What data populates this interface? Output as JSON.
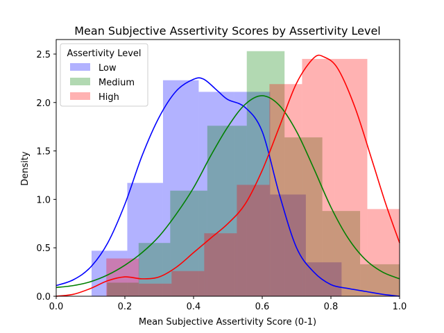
{
  "chart_data": {
    "type": "histogram-kde",
    "title": "Mean Subjective Assertivity Scores by Assertivity Level",
    "xlabel": "Mean Subjective Assertivity Score (0-1)",
    "ylabel": "Density",
    "xlim": [
      0,
      1
    ],
    "ylim": [
      0,
      2.65
    ],
    "xticks": [
      "0.0",
      "0.2",
      "0.4",
      "0.6",
      "0.8",
      "1.0"
    ],
    "yticks": [
      "0.0",
      "0.5",
      "1.0",
      "1.5",
      "2.0",
      "2.5"
    ],
    "grid": false,
    "legend": {
      "title": "Assertivity Level",
      "placement": "top-left"
    },
    "series": [
      {
        "name": "Low",
        "color": "#0000ff",
        "bins": [
          {
            "x0": 0.103,
            "x1": 0.207,
            "y": 0.47
          },
          {
            "x0": 0.207,
            "x1": 0.311,
            "y": 1.17
          },
          {
            "x0": 0.311,
            "x1": 0.415,
            "y": 2.23
          },
          {
            "x0": 0.415,
            "x1": 0.519,
            "y": 2.11
          },
          {
            "x0": 0.519,
            "x1": 0.623,
            "y": 2.11
          },
          {
            "x0": 0.623,
            "x1": 0.727,
            "y": 1.05
          },
          {
            "x0": 0.727,
            "x1": 0.831,
            "y": 0.35
          }
        ],
        "kde": [
          [
            0.0,
            0.11
          ],
          [
            0.05,
            0.17
          ],
          [
            0.1,
            0.3
          ],
          [
            0.15,
            0.55
          ],
          [
            0.2,
            0.95
          ],
          [
            0.25,
            1.45
          ],
          [
            0.3,
            1.85
          ],
          [
            0.35,
            2.12
          ],
          [
            0.4,
            2.24
          ],
          [
            0.43,
            2.24
          ],
          [
            0.47,
            2.12
          ],
          [
            0.5,
            2.03
          ],
          [
            0.55,
            1.95
          ],
          [
            0.6,
            1.7
          ],
          [
            0.65,
            1.05
          ],
          [
            0.7,
            0.5
          ],
          [
            0.75,
            0.25
          ],
          [
            0.8,
            0.12
          ],
          [
            0.85,
            0.08
          ],
          [
            0.9,
            0.05
          ],
          [
            0.95,
            0.02
          ],
          [
            1.0,
            0.0
          ]
        ]
      },
      {
        "name": "Medium",
        "color": "#008000",
        "bins": [
          {
            "x0": 0.1,
            "x1": 0.165,
            "y": 0.0
          },
          {
            "x0": 0.165,
            "x1": 0.23,
            "y": 0.0
          },
          {
            "x0": 0.24,
            "x1": 0.33,
            "y": 0.0
          }
        ],
        "bars": [
          {
            "x0": 0.148,
            "x1": 0.24,
            "y": 0.14
          },
          {
            "x0": 0.24,
            "x1": 0.332,
            "y": 0.55
          },
          {
            "x0": 0.332,
            "x1": 0.44,
            "y": 1.09
          },
          {
            "x0": 0.44,
            "x1": 0.555,
            "y": 1.76
          },
          {
            "x0": 0.555,
            "x1": 0.665,
            "y": 2.53
          },
          {
            "x0": 0.665,
            "x1": 0.775,
            "y": 1.64
          },
          {
            "x0": 0.775,
            "x1": 0.885,
            "y": 0.88
          },
          {
            "x0": 0.885,
            "x1": 1.0,
            "y": 0.33
          }
        ],
        "kde": [
          [
            0.0,
            0.09
          ],
          [
            0.05,
            0.11
          ],
          [
            0.1,
            0.15
          ],
          [
            0.15,
            0.22
          ],
          [
            0.2,
            0.32
          ],
          [
            0.25,
            0.45
          ],
          [
            0.3,
            0.62
          ],
          [
            0.35,
            0.85
          ],
          [
            0.4,
            1.12
          ],
          [
            0.45,
            1.45
          ],
          [
            0.5,
            1.75
          ],
          [
            0.55,
            1.98
          ],
          [
            0.6,
            2.07
          ],
          [
            0.65,
            1.97
          ],
          [
            0.7,
            1.7
          ],
          [
            0.75,
            1.32
          ],
          [
            0.8,
            0.92
          ],
          [
            0.85,
            0.6
          ],
          [
            0.9,
            0.38
          ],
          [
            0.95,
            0.25
          ],
          [
            1.0,
            0.18
          ]
        ]
      },
      {
        "name": "High",
        "color": "#ff0000",
        "bars": [
          {
            "x0": 0.146,
            "x1": 0.241,
            "y": 0.39
          },
          {
            "x0": 0.241,
            "x1": 0.336,
            "y": 0.13
          },
          {
            "x0": 0.336,
            "x1": 0.431,
            "y": 0.26
          },
          {
            "x0": 0.431,
            "x1": 0.526,
            "y": 0.65
          },
          {
            "x0": 0.526,
            "x1": 0.621,
            "y": 1.15
          },
          {
            "x0": 0.621,
            "x1": 0.716,
            "y": 2.19
          },
          {
            "x0": 0.716,
            "x1": 0.811,
            "y": 2.45
          },
          {
            "x0": 0.811,
            "x1": 0.906,
            "y": 2.45
          },
          {
            "x0": 0.906,
            "x1": 1.0,
            "y": 0.9
          }
        ],
        "kde": [
          [
            0.0,
            0.0
          ],
          [
            0.05,
            0.02
          ],
          [
            0.1,
            0.08
          ],
          [
            0.15,
            0.16
          ],
          [
            0.2,
            0.2
          ],
          [
            0.25,
            0.18
          ],
          [
            0.3,
            0.2
          ],
          [
            0.35,
            0.3
          ],
          [
            0.4,
            0.45
          ],
          [
            0.45,
            0.6
          ],
          [
            0.5,
            0.75
          ],
          [
            0.55,
            0.95
          ],
          [
            0.6,
            1.3
          ],
          [
            0.65,
            1.75
          ],
          [
            0.7,
            2.2
          ],
          [
            0.75,
            2.46
          ],
          [
            0.78,
            2.47
          ],
          [
            0.82,
            2.35
          ],
          [
            0.87,
            1.95
          ],
          [
            0.92,
            1.4
          ],
          [
            0.96,
            0.95
          ],
          [
            1.0,
            0.55
          ]
        ]
      }
    ]
  }
}
